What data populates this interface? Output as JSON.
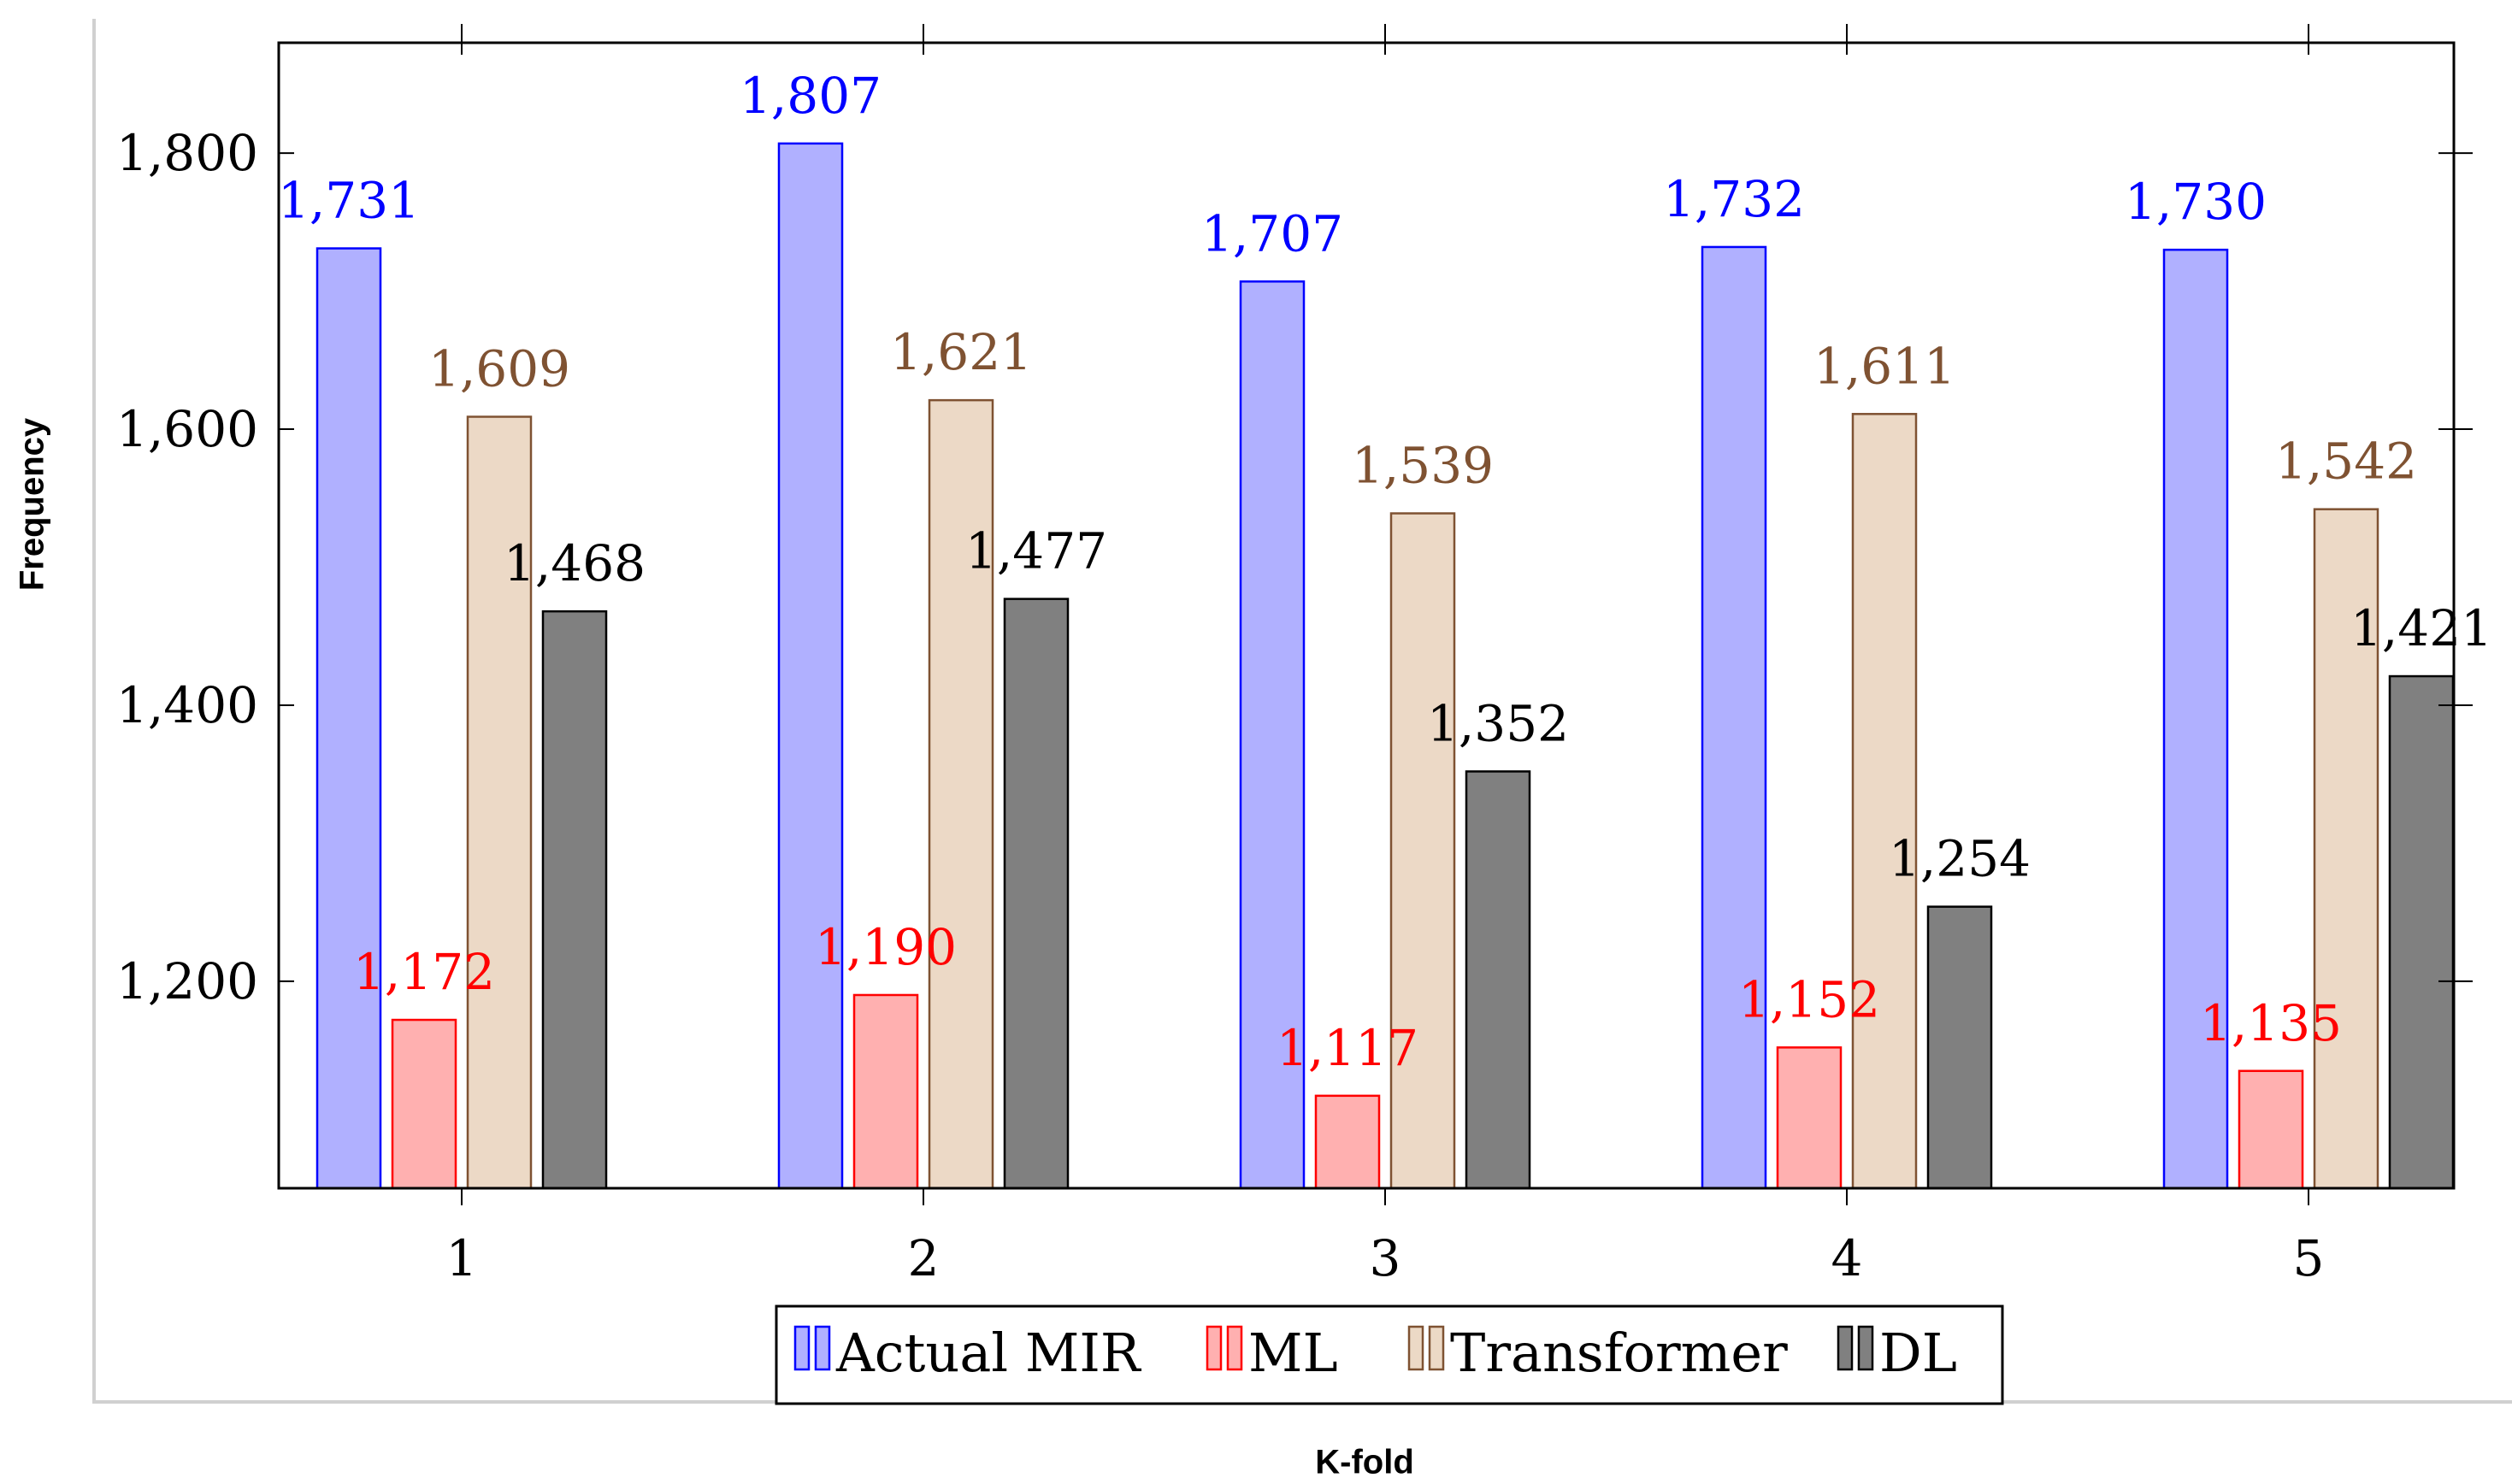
{
  "chart_data": {
    "type": "bar",
    "title": "",
    "xlabel": "K-fold",
    "ylabel": "Frequency",
    "categories": [
      "1",
      "2",
      "3",
      "4",
      "5"
    ],
    "ylim": [
      1050,
      1880
    ],
    "yticks": [
      1200,
      1400,
      1600,
      1800
    ],
    "ytick_labels": [
      "1,200",
      "1,400",
      "1,600",
      "1,800"
    ],
    "grid": false,
    "legend_position": "bottom-center",
    "series": [
      {
        "name": "Actual MIR",
        "values": [
          1731,
          1807,
          1707,
          1732,
          1730
        ],
        "labels": [
          "1,731",
          "1,807",
          "1,707",
          "1,732",
          "1,730"
        ],
        "fill": "#b0b0ff",
        "stroke": "#0000ff",
        "label_color": "#0000ff"
      },
      {
        "name": "ML",
        "values": [
          1172,
          1190,
          1117,
          1152,
          1135
        ],
        "labels": [
          "1,172",
          "1,190",
          "1,117",
          "1,152",
          "1,135"
        ],
        "fill": "#ffb0b0",
        "stroke": "#ff0000",
        "label_color": "#ff0000"
      },
      {
        "name": "Transformer",
        "values": [
          1609,
          1621,
          1539,
          1611,
          1542
        ],
        "labels": [
          "1,609",
          "1,621",
          "1,539",
          "1,611",
          "1,542"
        ],
        "fill": "#ecd9c6",
        "stroke": "#7f5232",
        "label_color": "#7f5232"
      },
      {
        "name": "DL",
        "values": [
          1468,
          1477,
          1352,
          1254,
          1421
        ],
        "labels": [
          "1,468",
          "1,477",
          "1,352",
          "1,254",
          "1,421"
        ],
        "fill": "#808080",
        "stroke": "#000000",
        "label_color": "#000000"
      }
    ]
  }
}
